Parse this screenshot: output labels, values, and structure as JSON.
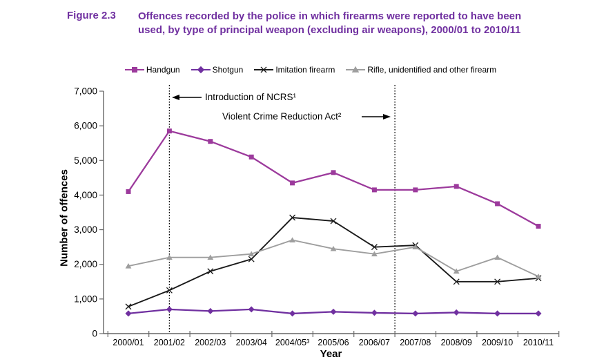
{
  "figure": {
    "label": "Figure 2.3",
    "title_line1": "Offences recorded by the police in which firearms were reported to have been",
    "title_line2": "used, by type of principal weapon (excluding air weapons), 2000/01 to 2010/11",
    "title_color": "#7030A0"
  },
  "annotations": {
    "ncrs": "Introduction of NCRS¹",
    "vcra": "Violent Crime Reduction Act²"
  },
  "chart_data": {
    "type": "line",
    "title": "Offences recorded by the police in which firearms were reported to have been used, by type of principal weapon (excluding air weapons), 2000/01 to 2010/11",
    "xlabel": "Year",
    "ylabel": "Number of offences",
    "ylim": [
      0,
      7000
    ],
    "y_tick_step": 1000,
    "y_tick_labels": [
      "0",
      "1,000",
      "2,000",
      "3,000",
      "4,000",
      "5,000",
      "6,000",
      "7,000"
    ],
    "grid": false,
    "legend_position": "top",
    "categories": [
      "2000/01",
      "2001/02",
      "2002/03",
      "2003/04",
      "2004/05³",
      "2005/06",
      "2006/07",
      "2007/08",
      "2008/09",
      "2009/10",
      "2010/11"
    ],
    "series": [
      {
        "name": "Handgun",
        "color": "#9C3A9C",
        "marker": "square",
        "values": [
          4100,
          5850,
          5550,
          5100,
          4350,
          4650,
          4150,
          4150,
          4250,
          3750,
          3100
        ]
      },
      {
        "name": "Shotgun",
        "color": "#7030A0",
        "marker": "diamond",
        "values": [
          580,
          700,
          650,
          700,
          580,
          630,
          600,
          580,
          610,
          580,
          580
        ]
      },
      {
        "name": "Imitation firearm",
        "color": "#1A1A1A",
        "marker": "x",
        "values": [
          780,
          1250,
          1800,
          2150,
          3350,
          3250,
          2500,
          2550,
          1500,
          1500,
          1600
        ]
      },
      {
        "name": "Rifle, unidentified and other firearm",
        "color": "#9E9E9E",
        "marker": "triangle",
        "values": [
          1950,
          2200,
          2200,
          2300,
          2700,
          2450,
          2300,
          2500,
          1800,
          2200,
          1650
        ]
      }
    ],
    "reference_lines": [
      {
        "label": "Introduction of NCRS¹",
        "x_index": 1
      },
      {
        "label": "Violent Crime Reduction Act²",
        "x_index": 6.5
      }
    ],
    "axis_color": "#666666"
  }
}
